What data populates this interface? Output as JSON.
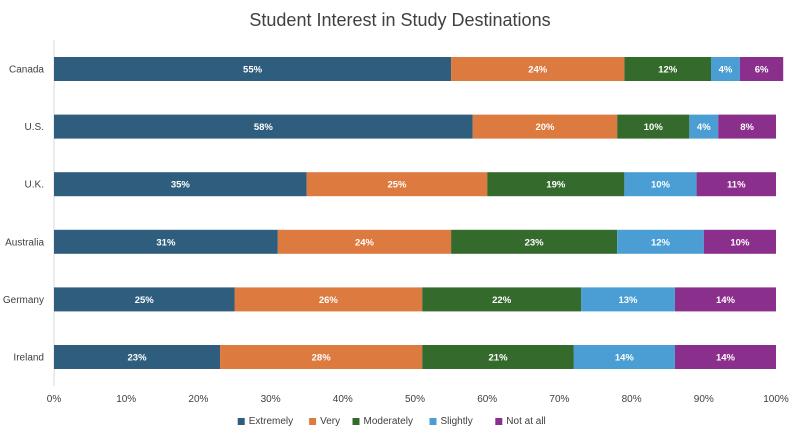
{
  "chart_data": {
    "type": "bar",
    "orientation": "horizontal",
    "stacked": true,
    "title": "Student Interest in Study Destinations",
    "categories": [
      "Canada",
      "U.S.",
      "U.K.",
      "Australia",
      "Germany",
      "Ireland"
    ],
    "series": [
      {
        "name": "Extremely",
        "color": "#2e5d7e",
        "values": [
          55,
          58,
          35,
          31,
          25,
          23
        ]
      },
      {
        "name": "Very",
        "color": "#dd7a40",
        "values": [
          24,
          20,
          25,
          24,
          26,
          28
        ]
      },
      {
        "name": "Moderately",
        "color": "#346b2c",
        "values": [
          12,
          10,
          19,
          23,
          22,
          21
        ]
      },
      {
        "name": "Slightly",
        "color": "#4a9ed3",
        "values": [
          4,
          4,
          10,
          12,
          13,
          14
        ]
      },
      {
        "name": "Not at all",
        "color": "#8b2f8c",
        "values": [
          6,
          8,
          11,
          10,
          14,
          14
        ]
      }
    ],
    "xlim": [
      0,
      100
    ],
    "xticks": [
      "0%",
      "10%",
      "20%",
      "30%",
      "40%",
      "50%",
      "60%",
      "70%",
      "80%",
      "90%",
      "100%"
    ],
    "data_label_suffix": "%",
    "grid": false,
    "legend": "bottom"
  }
}
